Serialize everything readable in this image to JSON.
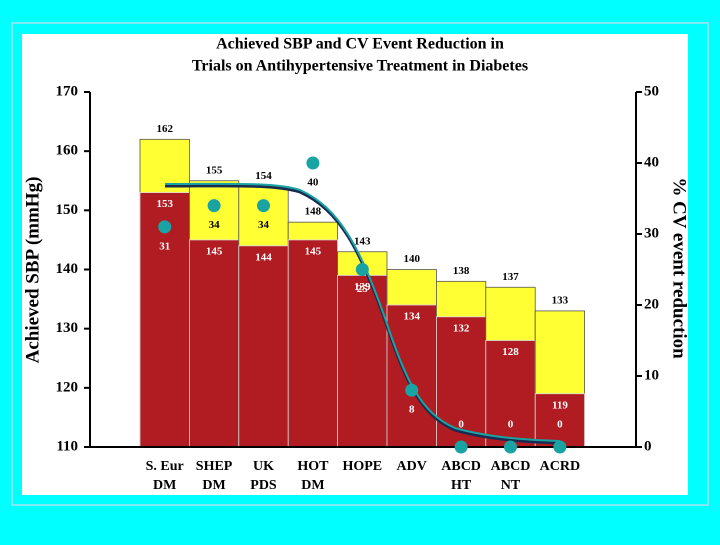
{
  "chart_data": {
    "type": "bar",
    "title": [
      "Achieved SBP and  CV Event  Reduction in",
      "Trials on Antihypertensive Treatment in Diabetes"
    ],
    "y_label": "Achieved SBP (mmHg)",
    "y2_label": "% CV event reduction",
    "categories": [
      [
        "S. Eur",
        "DM"
      ],
      [
        "SHEP",
        "DM"
      ],
      [
        "UK",
        "PDS"
      ],
      [
        "HOT",
        "DM"
      ],
      [
        "HOPE"
      ],
      [
        "ADV"
      ],
      [
        "ABCD",
        "HT"
      ],
      [
        "ABCD",
        "NT"
      ],
      [
        "ACRD"
      ]
    ],
    "series": [
      {
        "color": "#ffff33",
        "values": [
          162,
          155,
          154,
          148,
          143,
          140,
          138,
          137,
          133
        ]
      },
      {
        "color": "#b01c22",
        "values": [
          153,
          145,
          144,
          145,
          139,
          134,
          132,
          128,
          119
        ]
      },
      {
        "color": "#1aa3a3",
        "axis": "y2",
        "values": [
          31,
          34,
          34,
          40,
          25,
          8,
          0,
          0,
          0
        ]
      }
    ],
    "ylim": [
      110,
      170
    ],
    "yticks": [
      110,
      120,
      130,
      140,
      150,
      160,
      170
    ],
    "y2lim": [
      0,
      50
    ],
    "y2ticks": [
      0,
      10,
      20,
      30,
      40,
      50
    ]
  }
}
